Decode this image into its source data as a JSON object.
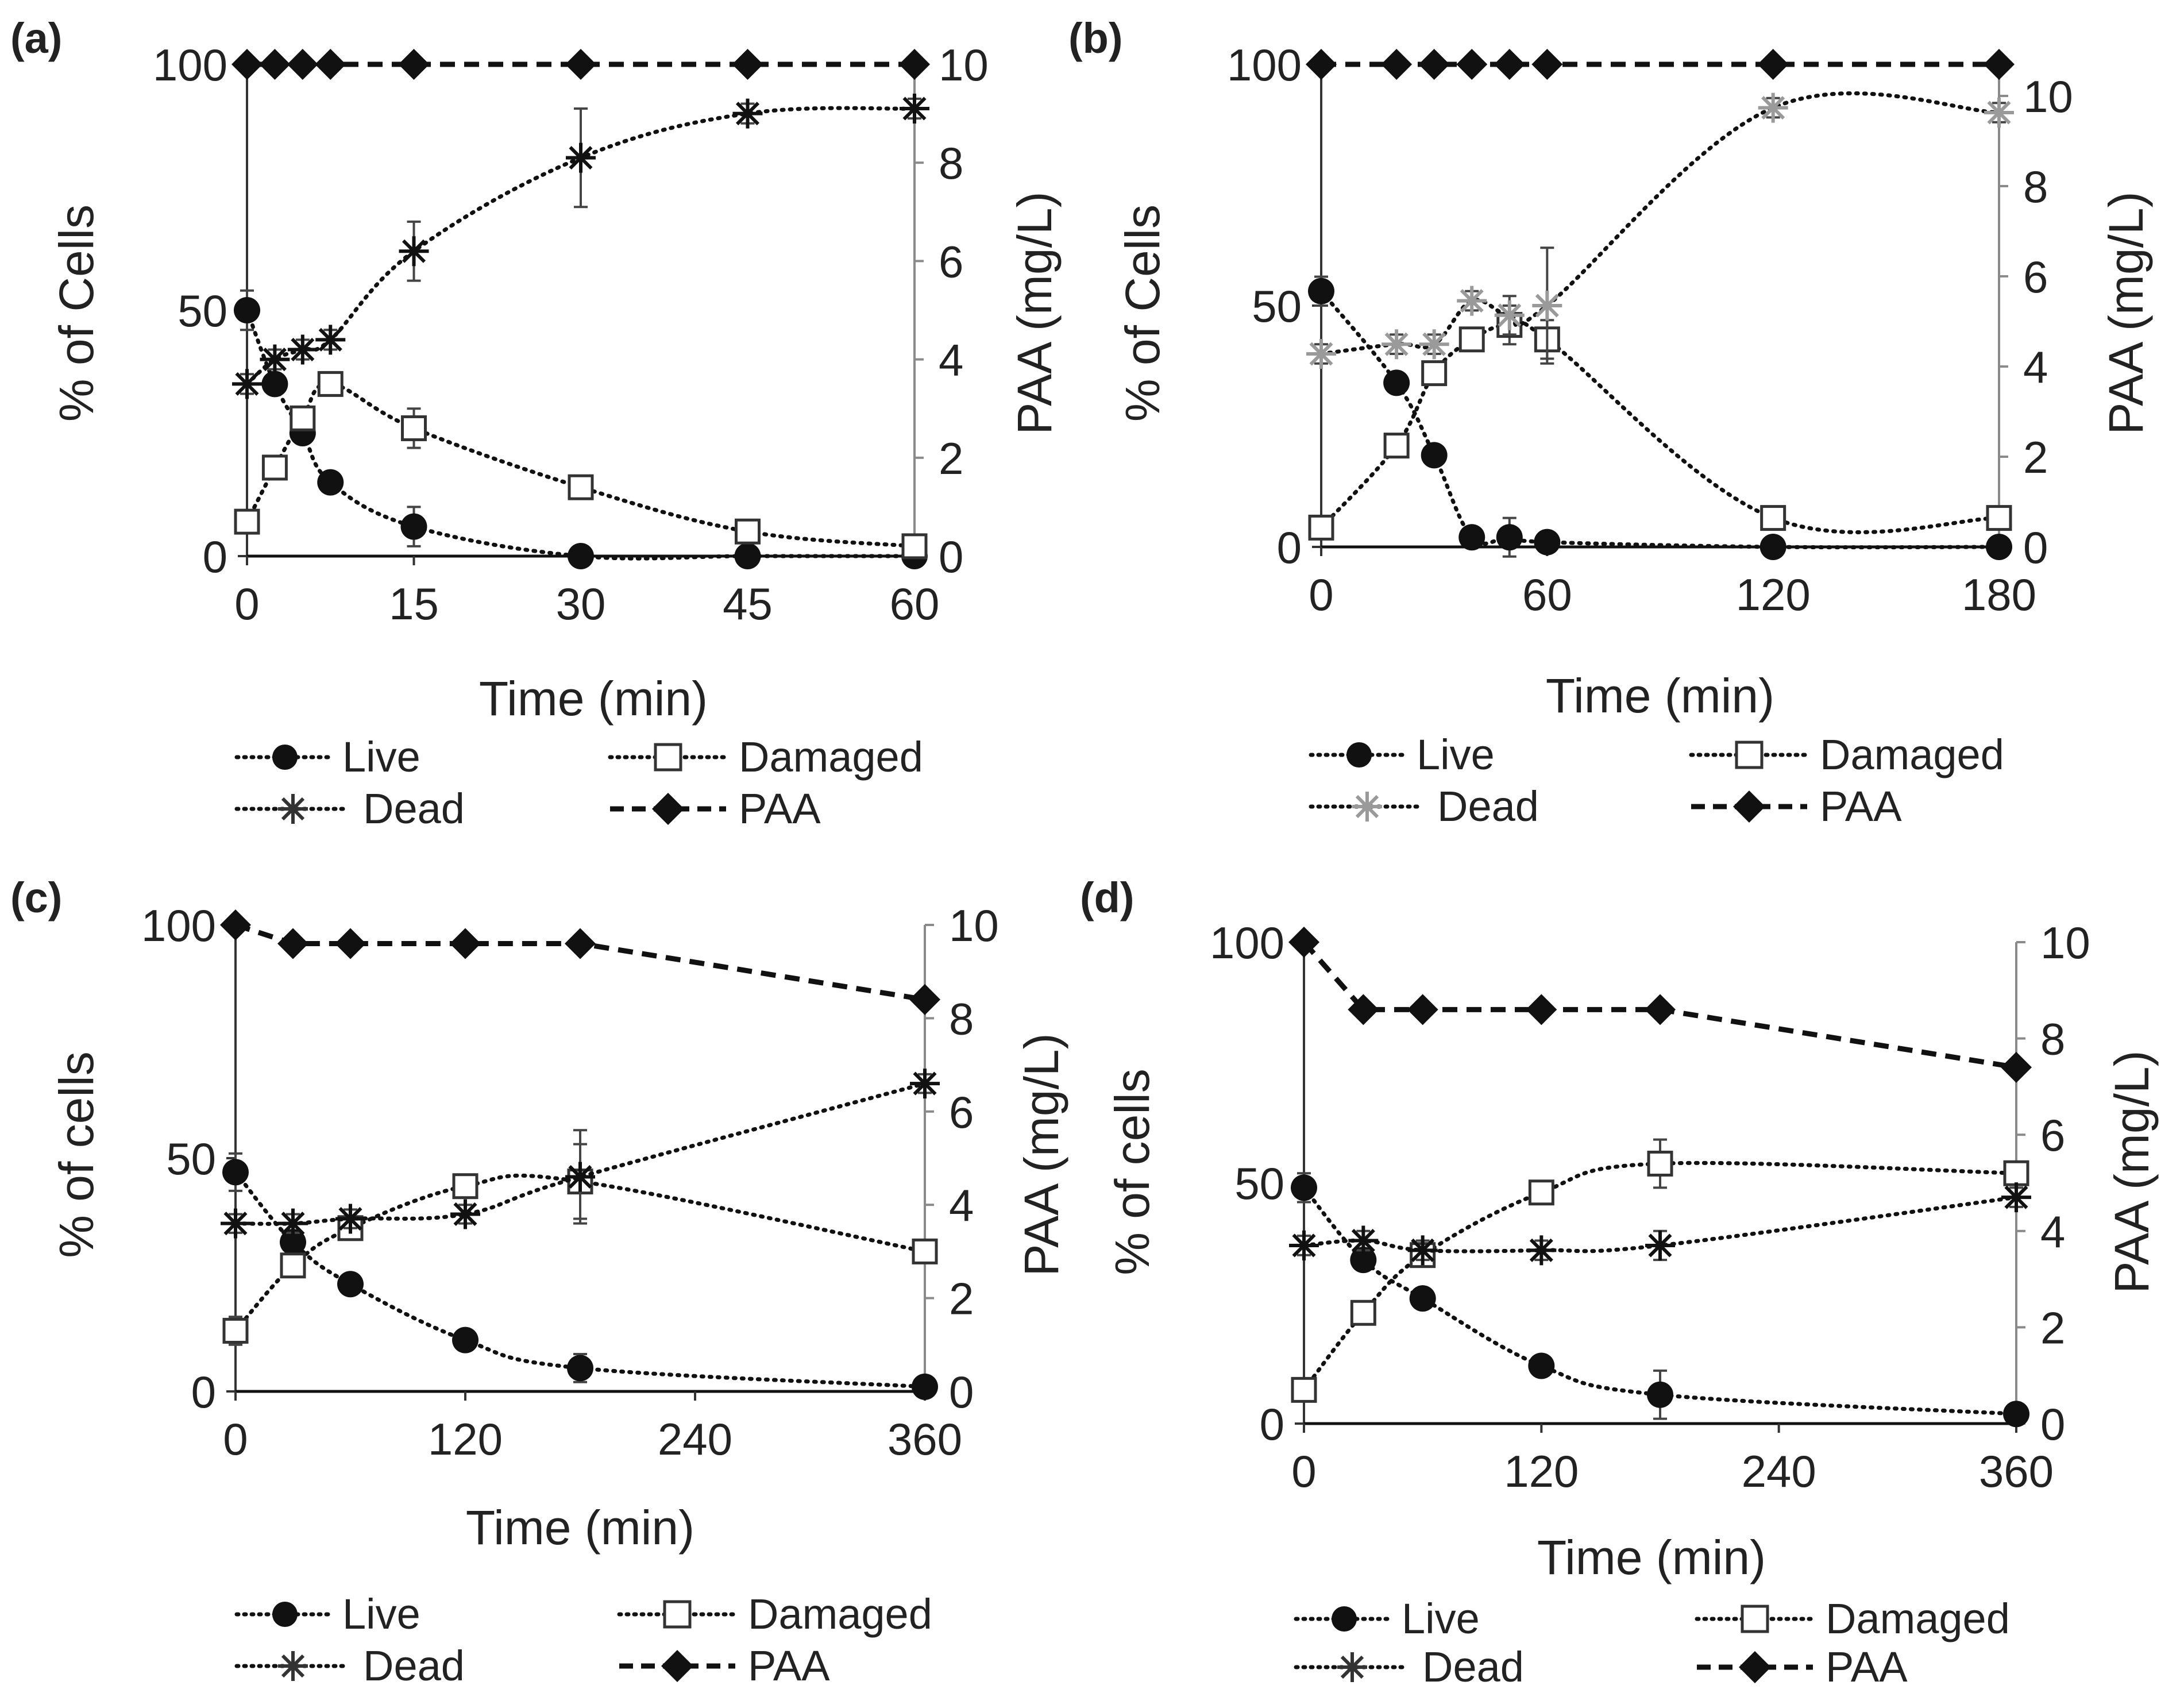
{
  "figure": {
    "description_labels": [
      "(a)",
      "(b)",
      "(c)",
      "(d)"
    ]
  },
  "colors": {
    "ink": "#111111",
    "axis": "#333333",
    "right_axis": "#8a8a8a",
    "dead_b": "#9a9a9a"
  },
  "chart_data": [
    {
      "type": "line",
      "panel": "(a)",
      "xlabel": "Time (min)",
      "ylabel": "% of Cells",
      "y2label": "PAA (mg/L)",
      "xlim": [
        0,
        60
      ],
      "xticks": [
        0,
        15,
        30,
        45,
        60
      ],
      "xtick_labels": [
        "0",
        "15",
        "30",
        "45",
        "60"
      ],
      "ylim": [
        0,
        100
      ],
      "yticks": [
        0,
        50,
        100
      ],
      "ytick_labels": [
        "0",
        "50",
        "100"
      ],
      "y2lim": [
        0,
        10
      ],
      "y2ticks": [
        0,
        2,
        4,
        6,
        8,
        10
      ],
      "y2tick_labels": [
        "0",
        "2",
        "4",
        "6",
        "8",
        "10"
      ],
      "legend": [
        "Live",
        "Damaged",
        "Dead",
        "PAA"
      ],
      "series": [
        {
          "name": "Live",
          "axis": "left",
          "marker": "circle",
          "style": "dotted",
          "x": [
            0,
            2.5,
            5,
            7.5,
            15,
            30,
            45,
            60
          ],
          "y": [
            50,
            35,
            25,
            15,
            6,
            0,
            0,
            0
          ],
          "err": [
            4,
            2,
            2,
            1,
            4,
            0,
            0,
            0
          ]
        },
        {
          "name": "Damaged",
          "axis": "left",
          "marker": "square",
          "style": "dotted",
          "x": [
            0,
            2.5,
            5,
            7.5,
            15,
            30,
            45,
            60
          ],
          "y": [
            7,
            18,
            28,
            35,
            26,
            14,
            5,
            2
          ],
          "err": [
            2,
            2,
            2,
            2,
            4,
            2,
            1,
            1
          ]
        },
        {
          "name": "Dead",
          "axis": "left",
          "marker": "asterisk",
          "style": "dotted",
          "x": [
            0,
            2.5,
            5,
            7.5,
            15,
            30,
            45,
            60
          ],
          "y": [
            35,
            40,
            42,
            44,
            62,
            81,
            90,
            91
          ],
          "err": [
            2,
            2,
            2,
            2,
            6,
            10,
            2,
            2
          ]
        },
        {
          "name": "PAA",
          "axis": "right",
          "marker": "diamond",
          "style": "dashed",
          "x": [
            0,
            2.5,
            5,
            7.5,
            15,
            30,
            45,
            60
          ],
          "y": [
            10,
            10,
            10,
            10,
            10,
            10,
            10,
            10
          ],
          "err": [
            0,
            0,
            0,
            0,
            0,
            0,
            0,
            0
          ]
        }
      ]
    },
    {
      "type": "line",
      "panel": "(b)",
      "xlabel": "Time (min)",
      "ylabel": "% of Cells",
      "y2label": "PAA (mg/L)",
      "xlim": [
        0,
        180
      ],
      "xticks": [
        0,
        60,
        120,
        180
      ],
      "xtick_labels": [
        "0",
        "60",
        "120",
        "180"
      ],
      "ylim": [
        0,
        100
      ],
      "yticks": [
        0,
        50,
        100
      ],
      "ytick_labels": [
        "0",
        "50",
        "100"
      ],
      "y2lim": [
        0,
        10.7
      ],
      "y2ticks": [
        0,
        2,
        4,
        6,
        8,
        10
      ],
      "y2tick_labels": [
        "0",
        "2",
        "4",
        "6",
        "8",
        "10"
      ],
      "legend": [
        "Live",
        "Damaged",
        "Dead",
        "PAA"
      ],
      "series": [
        {
          "name": "Live",
          "axis": "left",
          "marker": "circle",
          "style": "dotted",
          "x": [
            0,
            20,
            30,
            40,
            50,
            60,
            120,
            180
          ],
          "y": [
            53,
            34,
            19,
            2,
            2,
            1,
            0,
            0
          ],
          "err": [
            3,
            2,
            2,
            2,
            4,
            1,
            0,
            0
          ]
        },
        {
          "name": "Damaged",
          "axis": "left",
          "marker": "square",
          "style": "dotted",
          "x": [
            0,
            20,
            30,
            40,
            50,
            60,
            120,
            180
          ],
          "y": [
            4,
            21,
            36,
            43,
            46,
            43,
            6,
            6
          ],
          "err": [
            2,
            2,
            2,
            2,
            4,
            4,
            2,
            2
          ]
        },
        {
          "name": "Dead",
          "axis": "left",
          "marker": "asterisk",
          "style": "dotted",
          "x": [
            0,
            20,
            30,
            40,
            50,
            60,
            120,
            180
          ],
          "y": [
            40,
            42,
            42,
            51,
            48,
            50,
            91,
            90
          ],
          "err": [
            2,
            2,
            2,
            2,
            4,
            12,
            2,
            2
          ]
        },
        {
          "name": "PAA",
          "axis": "right",
          "marker": "diamond",
          "style": "dashed",
          "x": [
            0,
            20,
            30,
            40,
            50,
            60,
            120,
            180
          ],
          "y": [
            10.7,
            10.7,
            10.7,
            10.7,
            10.7,
            10.7,
            10.7,
            10.7
          ],
          "err": [
            0,
            0,
            0,
            0,
            0,
            0,
            0,
            0
          ]
        }
      ]
    },
    {
      "type": "line",
      "panel": "(c)",
      "xlabel": "Time (min)",
      "ylabel": "% of cells",
      "y2label": "PAA (mg/L)",
      "xlim": [
        0,
        360
      ],
      "xticks": [
        0,
        120,
        240,
        360
      ],
      "xtick_labels": [
        "0",
        "120",
        "240",
        "360"
      ],
      "ylim": [
        0,
        100
      ],
      "yticks": [
        0,
        50,
        100
      ],
      "ytick_labels": [
        "0",
        "50",
        "100"
      ],
      "y2lim": [
        0,
        10
      ],
      "y2ticks": [
        0,
        2,
        4,
        6,
        8,
        10
      ],
      "y2tick_labels": [
        "0",
        "2",
        "4",
        "6",
        "8",
        "10"
      ],
      "legend": [
        "Live",
        "Damaged",
        "Dead",
        "PAA"
      ],
      "series": [
        {
          "name": "Live",
          "axis": "left",
          "marker": "circle",
          "style": "dotted",
          "x": [
            0,
            30,
            60,
            120,
            180,
            360
          ],
          "y": [
            47,
            32,
            23,
            11,
            5,
            1
          ],
          "err": [
            4,
            2,
            2,
            2,
            3,
            1
          ]
        },
        {
          "name": "Damaged",
          "axis": "left",
          "marker": "square",
          "style": "dotted",
          "x": [
            0,
            30,
            60,
            120,
            180,
            360
          ],
          "y": [
            13,
            27,
            35,
            44,
            45,
            30
          ],
          "err": [
            3,
            2,
            2,
            2,
            8,
            2
          ]
        },
        {
          "name": "Dead",
          "axis": "left",
          "marker": "asterisk",
          "style": "dotted",
          "x": [
            0,
            30,
            60,
            120,
            180,
            360
          ],
          "y": [
            36,
            36,
            37,
            38,
            46,
            66
          ],
          "err": [
            2,
            2,
            2,
            2,
            10,
            2
          ]
        },
        {
          "name": "PAA",
          "axis": "right",
          "marker": "diamond",
          "style": "dashed",
          "x": [
            0,
            30,
            60,
            120,
            180,
            360
          ],
          "y": [
            10,
            9.6,
            9.6,
            9.6,
            9.6,
            8.4
          ],
          "err": [
            0,
            0,
            0,
            0,
            0,
            0
          ]
        }
      ]
    },
    {
      "type": "line",
      "panel": "(d)",
      "xlabel": "Time (min)",
      "ylabel": "% of cells",
      "y2label": "PAA (mg/L)",
      "xlim": [
        0,
        360
      ],
      "xticks": [
        0,
        120,
        240,
        360
      ],
      "xtick_labels": [
        "0",
        "120",
        "240",
        "360"
      ],
      "ylim": [
        0,
        100
      ],
      "yticks": [
        0,
        50,
        100
      ],
      "ytick_labels": [
        "0",
        "50",
        "100"
      ],
      "y2lim": [
        0,
        10
      ],
      "y2ticks": [
        0,
        2,
        4,
        6,
        8,
        10
      ],
      "y2tick_labels": [
        "0",
        "2",
        "4",
        "6",
        "8",
        "10"
      ],
      "legend": [
        "Live",
        "Damaged",
        "Dead",
        "PAA"
      ],
      "series": [
        {
          "name": "Live",
          "axis": "left",
          "marker": "circle",
          "style": "dotted",
          "x": [
            0,
            30,
            60,
            120,
            180,
            360
          ],
          "y": [
            49,
            34,
            26,
            12,
            6,
            2
          ],
          "err": [
            3,
            2,
            2,
            2,
            5,
            1
          ]
        },
        {
          "name": "Damaged",
          "axis": "left",
          "marker": "square",
          "style": "dotted",
          "x": [
            0,
            30,
            60,
            120,
            180,
            360
          ],
          "y": [
            7,
            23,
            35,
            48,
            54,
            52
          ],
          "err": [
            2,
            2,
            2,
            2,
            5,
            2
          ]
        },
        {
          "name": "Dead",
          "axis": "left",
          "marker": "asterisk",
          "style": "dotted",
          "x": [
            0,
            30,
            60,
            120,
            180,
            360
          ],
          "y": [
            37,
            38,
            36,
            36,
            37,
            47
          ],
          "err": [
            2,
            2,
            2,
            2,
            3,
            2
          ]
        },
        {
          "name": "PAA",
          "axis": "right",
          "marker": "diamond",
          "style": "dashed",
          "x": [
            0,
            30,
            60,
            120,
            180,
            360
          ],
          "y": [
            10,
            8.6,
            8.6,
            8.6,
            8.6,
            7.4
          ],
          "err": [
            0,
            0,
            0,
            0,
            0,
            0
          ]
        }
      ]
    }
  ]
}
